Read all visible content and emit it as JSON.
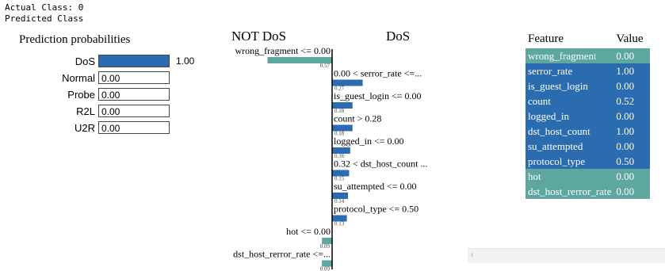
{
  "header": {
    "actual": "Actual Class:  0",
    "predicted": "Predicted Class"
  },
  "probabilities": {
    "title": "Prediction probabilities",
    "items": [
      {
        "label": "DoS",
        "value": 1.0,
        "text": "1.00",
        "outside": true
      },
      {
        "label": "Normal",
        "value": 0.0,
        "text": "0.00",
        "outside": false
      },
      {
        "label": "Probe",
        "value": 0.0,
        "text": "0.00",
        "outside": false
      },
      {
        "label": "R2L",
        "value": 0.0,
        "text": "0.00",
        "outside": false
      },
      {
        "label": "U2R",
        "value": 0.0,
        "text": "0.00",
        "outside": false
      }
    ]
  },
  "explanation": {
    "negative_label": "NOT DoS",
    "positive_label": "DoS",
    "colors": {
      "negative": "#5ea7a0",
      "positive": "#2b6cb0"
    },
    "features": [
      {
        "label": "wrong_fragment <= 0.00",
        "weight": -0.57,
        "weight_text": "0.57"
      },
      {
        "label": "0.00 < serror_rate <=...",
        "weight": 0.27,
        "weight_text": "0.27"
      },
      {
        "label": "is_guest_login <= 0.00",
        "weight": 0.18,
        "weight_text": "0.18"
      },
      {
        "label": "count > 0.28",
        "weight": 0.18,
        "weight_text": "0.18"
      },
      {
        "label": "logged_in <= 0.00",
        "weight": 0.16,
        "weight_text": "0.16"
      },
      {
        "label": "0.32 < dst_host_count ...",
        "weight": 0.15,
        "weight_text": "0.15"
      },
      {
        "label": "su_attempted <= 0.00",
        "weight": 0.14,
        "weight_text": "0.14"
      },
      {
        "label": "protocol_type <= 0.50",
        "weight": 0.13,
        "weight_text": "0.13"
      },
      {
        "label": "hot <= 0.00",
        "weight": -0.09,
        "weight_text": "0.09"
      },
      {
        "label": "dst_host_rerror_rate <=...",
        "weight": -0.09,
        "weight_text": "0.09"
      }
    ]
  },
  "feature_table": {
    "headers": [
      "Feature",
      "Value"
    ],
    "rows": [
      {
        "feature": "wrong_fragment",
        "value": "0.00",
        "side": "negative"
      },
      {
        "feature": "serror_rate",
        "value": "1.00",
        "side": "positive"
      },
      {
        "feature": "is_guest_login",
        "value": "0.00",
        "side": "positive"
      },
      {
        "feature": "count",
        "value": "0.52",
        "side": "positive"
      },
      {
        "feature": "logged_in",
        "value": "0.00",
        "side": "positive"
      },
      {
        "feature": "dst_host_count",
        "value": "1.00",
        "side": "positive"
      },
      {
        "feature": "su_attempted",
        "value": "0.00",
        "side": "positive"
      },
      {
        "feature": "protocol_type",
        "value": "0.50",
        "side": "positive"
      },
      {
        "feature": "hot",
        "value": "0.00",
        "side": "negative"
      },
      {
        "feature": "dst_host_rerror_rate",
        "value": "0.00",
        "side": "negative"
      }
    ]
  },
  "scrollbar": {
    "left_arrow": "‹"
  }
}
